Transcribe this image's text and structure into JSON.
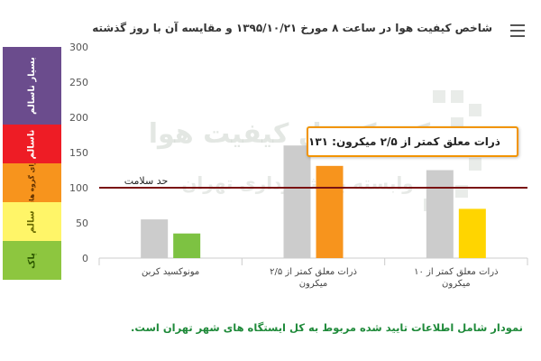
{
  "header": {
    "title": "شاخص کیفیت هوا در ساعت ۸ مورخ ۱۳۹۵/۱۰/۲۱ و مقایسه آن با روز گذشته",
    "menu_icon": "hamburger-menu-icon"
  },
  "aqi_scale": {
    "bands": [
      {
        "label": "بسیار ناسالم",
        "color": "#6b4c8d",
        "from": 200,
        "to": 300,
        "text_color": "#ffffff"
      },
      {
        "label": "ناسالم",
        "color": "#ee1c25",
        "from": 150,
        "to": 200,
        "text_color": "#ffffff"
      },
      {
        "label": "ناسالم برای گروه های حساس",
        "color": "#f7941d",
        "from": 100,
        "to": 150,
        "text_color": "#5a2c00"
      },
      {
        "label": "سالم",
        "color": "#fff568",
        "from": 50,
        "to": 100,
        "text_color": "#6b6b00"
      },
      {
        "label": "پاک",
        "color": "#8dc63f",
        "from": 0,
        "to": 50,
        "text_color": "#2e5a00"
      }
    ]
  },
  "tooltip": {
    "text": "ذرات معلق کمتر از ۲/۵ میکرون: ۱۳۱"
  },
  "watermark": {
    "line1": "شرکت کنترل کیفیت هوا",
    "line2": "وابسته به شهرداری تهران"
  },
  "footnote": "نمودار شامل اطلاعات تایید شده مربوط به کل ایستگاه های شهر تهران است.",
  "chart_data": {
    "type": "bar",
    "title": "شاخص کیفیت هوا در ساعت ۸ مورخ ۱۳۹۵/۱۰/۲۱ و مقایسه آن با روز گذشته",
    "xlabel": "",
    "ylabel": "",
    "ylim": [
      0,
      300
    ],
    "yticks": [
      0,
      50,
      100,
      150,
      200,
      250,
      300
    ],
    "grid": false,
    "categories": [
      "مونوکسید کربن",
      "ذرات معلق کمتر از ۲/۵ میکرون",
      "ذرات معلق کمتر از ۱۰ میکرون"
    ],
    "series": [
      {
        "values": [
          55,
          160,
          125
        ],
        "color": "#cccccc"
      },
      {
        "values": [
          35,
          131,
          70
        ],
        "colors": [
          "#7dc242",
          "#f7941d",
          "#ffd500"
        ]
      }
    ],
    "reference_line": {
      "value": 100,
      "label": "حد سلامت",
      "color": "#7a1212"
    }
  }
}
